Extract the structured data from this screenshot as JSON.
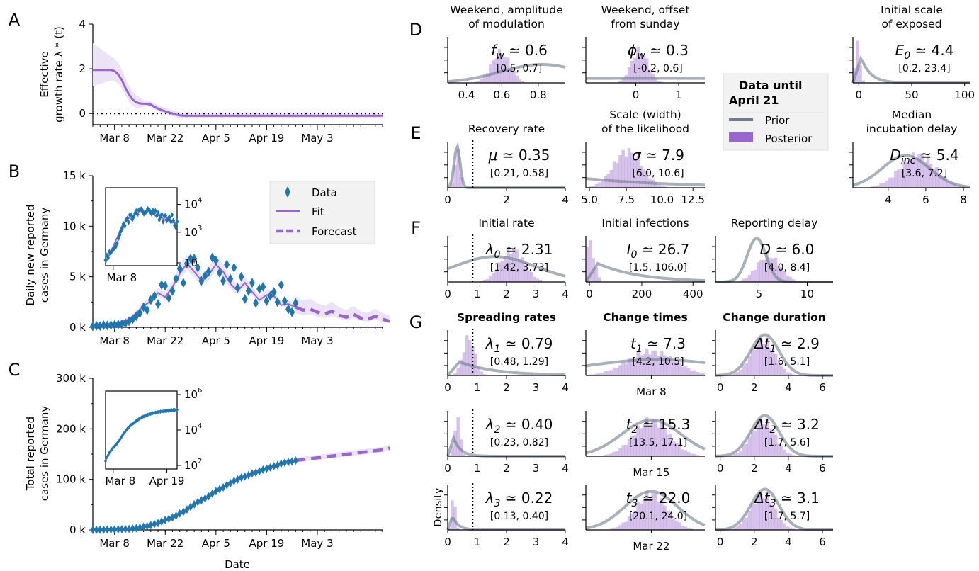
{
  "colors": {
    "posterior": "#9966cc",
    "posterior_light": "#d9c6ee",
    "band": "#ece3f6",
    "prior": "#6e7b8b",
    "data": "#2176ae"
  },
  "left": {
    "A": {
      "letter": "A",
      "ylabel1": "Effective",
      "ylabel2": "growth rate λ * (t)",
      "yticks": [
        "0",
        "2",
        "4"
      ],
      "xticks": [
        "Mar 8",
        "Mar 22",
        "Apr 5",
        "Apr 19",
        "May 3"
      ],
      "ylim": [
        -0.5,
        4
      ],
      "series": [
        {
          "t": [
            0,
            5,
            6,
            7,
            8,
            9,
            10,
            11,
            12,
            13,
            14,
            15,
            16,
            17,
            18,
            19,
            20,
            21,
            22,
            23,
            24,
            25,
            80
          ],
          "v": [
            1.95,
            1.95,
            1.9,
            1.75,
            1.5,
            1.15,
            0.85,
            0.62,
            0.5,
            0.45,
            0.44,
            0.43,
            0.4,
            0.3,
            0.22,
            0.15,
            0.1,
            0.05,
            0.0,
            -0.05,
            -0.08,
            -0.1,
            -0.1
          ]
        }
      ]
    },
    "B": {
      "letter": "B",
      "ylabel1": "Daily new reported",
      "ylabel2": "cases in Germany",
      "yticks": [
        "0 k",
        "5 k",
        "10 k",
        "15 k"
      ],
      "xticks": [
        "Mar 8",
        "Mar 22",
        "Apr 5",
        "Apr 19",
        "May 3"
      ],
      "inset_xtick": "Mar 8",
      "inset_yticks": [
        "10",
        "10",
        "10"
      ],
      "inset_yexp": [
        "4",
        "3",
        ""
      ],
      "legend": {
        "data": "Data",
        "fit": "Fit",
        "forecast": "Forecast"
      },
      "ylim": [
        0,
        15000
      ],
      "data_t": [
        0,
        1,
        2,
        3,
        4,
        5,
        6,
        7,
        8,
        9,
        10,
        11,
        12,
        13,
        14,
        15,
        16,
        17,
        18,
        19,
        20,
        21,
        22,
        23,
        24,
        25,
        26,
        27,
        28,
        29,
        30,
        31,
        32,
        33,
        34,
        35,
        36,
        37,
        38,
        39,
        40,
        41,
        42,
        43,
        44,
        45,
        46,
        47,
        48,
        49,
        50,
        51,
        52,
        53,
        54,
        55,
        56
      ],
      "data_v": [
        100,
        150,
        120,
        200,
        180,
        220,
        240,
        280,
        300,
        400,
        600,
        800,
        1100,
        1400,
        2000,
        1700,
        2700,
        3100,
        2300,
        4200,
        4100,
        2900,
        3600,
        4800,
        5800,
        4400,
        6300,
        6800,
        6800,
        5900,
        4600,
        5100,
        5500,
        6900,
        6600,
        5400,
        4600,
        6200,
        4800,
        5900,
        3900,
        5000,
        2800,
        3600,
        4400,
        2400,
        3800,
        4000,
        2600,
        3100,
        3500,
        2500,
        4200,
        2600,
        1800,
        1500,
        2400
      ],
      "fit_t": [
        0,
        5,
        10,
        12,
        14,
        16,
        18,
        20,
        22,
        24,
        26,
        28,
        30,
        32,
        34,
        36,
        38,
        40,
        42,
        44,
        46,
        48,
        50,
        52,
        54,
        56
      ],
      "fit_v": [
        80,
        250,
        800,
        1400,
        2100,
        2600,
        3400,
        3000,
        4000,
        5300,
        6300,
        5500,
        4600,
        5200,
        6200,
        5500,
        4300,
        3600,
        4400,
        3500,
        2700,
        3200,
        3100,
        2200,
        2300,
        2000
      ],
      "fc_t": [
        56,
        58,
        60,
        62,
        64,
        66,
        68,
        70,
        72,
        74,
        76,
        78,
        80,
        82
      ],
      "fc_v": [
        2000,
        1700,
        1800,
        1500,
        1300,
        1600,
        1200,
        1000,
        1300,
        900,
        800,
        1100,
        800,
        600
      ]
    },
    "C": {
      "letter": "C",
      "ylabel1": "Total reported",
      "ylabel2": "cases in Germany",
      "yticks": [
        "0 k",
        "100 k",
        "200 k",
        "300 k"
      ],
      "xticks": [
        "Mar 8",
        "Mar 22",
        "Apr 5",
        "Apr 19",
        "May 3"
      ],
      "xlabel": "Date",
      "inset_xticks": [
        "Mar 8",
        "Apr 19"
      ],
      "inset_yticks": [
        "10",
        "10",
        "10"
      ],
      "inset_yexp": [
        "6",
        "4",
        "2"
      ],
      "ylim": [
        0,
        300000
      ]
    }
  },
  "right": {
    "D_letter": "D",
    "E_letter": "E",
    "F_letter": "F",
    "G_letter": "G",
    "panels": [
      {
        "id": "fw",
        "title1": "Weekend, amplitude",
        "title2": "of modulation",
        "label": "f",
        "sub": "w",
        "eq": "≃ 0.6",
        "ci": "[0.5, 0.7]",
        "xticks": [
          "0.4",
          "0.6",
          "0.8"
        ]
      },
      {
        "id": "phi",
        "title1": "Weekend, offset",
        "title2": "from sunday",
        "label": "ϕ",
        "sub": "w",
        "eq": "≃ 0.3",
        "ci": "[-0.2, 0.6]",
        "xticks": [
          "0",
          "1"
        ]
      },
      {
        "id": "E0",
        "title1": "Initial scale",
        "title2": "of exposed",
        "label": "E",
        "sub": "0",
        "eq": "≃ 4.4",
        "ci": "[0.2, 23.4]",
        "xticks": [
          "0",
          "50",
          "100"
        ]
      },
      {
        "id": "mu",
        "title1": "",
        "title2": "Recovery rate",
        "label": "μ",
        "sub": "",
        "eq": "≃ 0.35",
        "ci": "[0.21, 0.58]",
        "xticks": [
          "0",
          "2",
          "4"
        ]
      },
      {
        "id": "sigma",
        "title1": "Scale (width)",
        "title2": "of the likelihood",
        "label": "σ",
        "sub": "",
        "eq": "≃ 7.9",
        "ci": "[6.0, 10.6]",
        "xticks": [
          "5.0",
          "7.5",
          "10.0",
          "12.5"
        ]
      },
      {
        "id": "Dinc",
        "title1": "Median",
        "title2": "incubation delay",
        "label": "D",
        "sub": "inc",
        "eq": "≃ 5.4",
        "ci": "[3.6, 7.2]",
        "xticks": [
          "4",
          "6",
          "8"
        ]
      },
      {
        "id": "l0",
        "title1": "",
        "title2": "Initial rate",
        "label": "λ",
        "sub": "0",
        "eq": "≃ 2.31",
        "ci": "[1.42, 3.73]",
        "xticks": [
          "0",
          "1",
          "2",
          "3",
          "4"
        ]
      },
      {
        "id": "I0",
        "title1": "",
        "title2": "Initial infections",
        "label": "I",
        "sub": "0",
        "eq": "≃ 26.7",
        "ci": "[1.5, 106.0]",
        "xticks": [
          "0",
          "200",
          "400"
        ]
      },
      {
        "id": "D",
        "title1": "",
        "title2": "Reporting delay",
        "label": "D",
        "sub": "",
        "eq": "≃ 6.0",
        "ci": "[4.0, 8.4]",
        "xticks": [
          "5",
          "10"
        ]
      },
      {
        "id": "l1",
        "title1": "",
        "title2": "Spreading rates",
        "bold": true,
        "label": "λ",
        "sub": "1",
        "eq": "≃ 0.79",
        "ci": "[0.48, 1.29]",
        "xticks": [
          "0",
          "1",
          "2",
          "3",
          "4"
        ]
      },
      {
        "id": "t1",
        "title1": "",
        "title2": "Change times",
        "bold": true,
        "label": "t",
        "sub": "1",
        "eq": "≃ 7.3",
        "ci": "[4.2, 10.5]",
        "xticks": [
          "Mar 8"
        ]
      },
      {
        "id": "dt1",
        "title1": "",
        "title2": "Change duration",
        "bold": true,
        "label": "Δt",
        "sub": "1",
        "eq": "≃ 2.9",
        "ci": "[1.6, 5.1]",
        "xticks": [
          "0",
          "2",
          "4",
          "6"
        ]
      },
      {
        "id": "l2",
        "title1": "",
        "title2": "",
        "label": "λ",
        "sub": "2",
        "eq": "≃ 0.40",
        "ci": "[0.23, 0.82]",
        "xticks": [
          "0",
          "1",
          "2",
          "3",
          "4"
        ]
      },
      {
        "id": "t2",
        "title1": "",
        "title2": "",
        "label": "t",
        "sub": "2",
        "eq": "≃ 15.3",
        "ci": "[13.5, 17.1]",
        "xticks": [
          "Mar 15"
        ]
      },
      {
        "id": "dt2",
        "title1": "",
        "title2": "",
        "label": "Δt",
        "sub": "2",
        "eq": "≃ 3.2",
        "ci": "[1.7, 5.6]",
        "xticks": [
          "0",
          "2",
          "4",
          "6"
        ]
      },
      {
        "id": "l3",
        "title1": "",
        "title2": "",
        "label": "λ",
        "sub": "3",
        "eq": "≃ 0.22",
        "ci": "[0.13, 0.40]",
        "xticks": [
          "0",
          "1",
          "2",
          "3",
          "4"
        ],
        "ylabel": "Density"
      },
      {
        "id": "t3",
        "title1": "",
        "title2": "",
        "label": "t",
        "sub": "3",
        "eq": "≃ 22.0",
        "ci": "[20.1, 24.0]",
        "xticks": [
          "Mar 22"
        ]
      },
      {
        "id": "dt3",
        "title1": "",
        "title2": "",
        "label": "Δt",
        "sub": "3",
        "eq": "≃ 3.1",
        "ci": "[1.7, 5.7]",
        "xticks": [
          "0",
          "2",
          "4",
          "6"
        ]
      }
    ],
    "legend": {
      "title1": "Data until",
      "title2": "April 21",
      "prior": "Prior",
      "posterior": "Posterior"
    }
  },
  "chart_data": [
    {
      "type": "line",
      "ylim": [
        -0.5,
        4
      ],
      "series": [
        {
          "values": "see left.A.series"
        }
      ]
    },
    {
      "type": "scatter",
      "ylim": [
        0,
        15000
      ],
      "legend": [
        "Data",
        "Fit",
        "Forecast"
      ]
    },
    {
      "type": "line",
      "ylim": [
        0,
        300000
      ]
    }
  ]
}
